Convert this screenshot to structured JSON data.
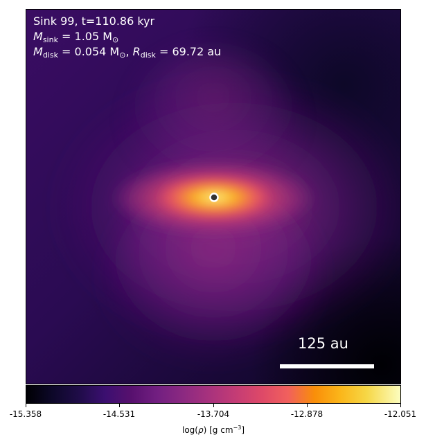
{
  "panel": {
    "line1": "Sink 99, t=110.86 kyr",
    "msink_symbol": "M",
    "msink_sub": "sink",
    "msink_value": " = 1.05 M",
    "msink_unit_sub": "⊙",
    "mdisk_symbol": "M",
    "mdisk_sub": "disk",
    "mdisk_value": " = 0.054 M",
    "mdisk_unit_sub": "⊙",
    "rdisk_sep": ", ",
    "rdisk_symbol": "R",
    "rdisk_sub": "disk",
    "rdisk_value": " = 69.72 au"
  },
  "scalebar": {
    "label": "125 au"
  },
  "colorbar": {
    "colormap": "inferno",
    "min": -15.358,
    "max": -12.051,
    "ticks": [
      "-15.358",
      "-14.531",
      "-13.704",
      "-12.878",
      "-12.051"
    ],
    "label_prefix": "log(",
    "label_rho": "ρ",
    "label_mid": ") [g cm",
    "label_exp": "−3",
    "label_suffix": "]"
  },
  "colors": {
    "background_dark": "#1a0a3a",
    "disk_hot": "#fcffa4",
    "sink_marker_edge": "#ffffff",
    "sink_marker_fill": "#333333"
  }
}
